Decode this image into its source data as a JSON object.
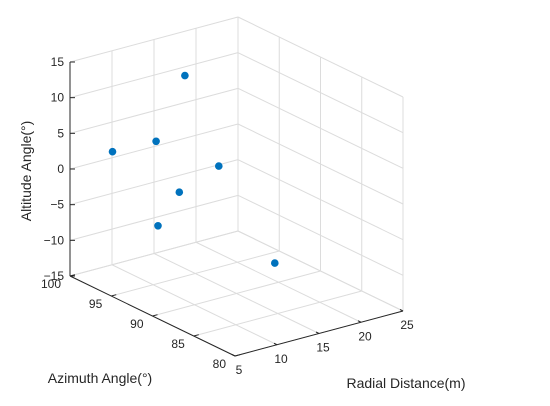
{
  "chart_data": {
    "type": "scatter",
    "projection": "3d",
    "xlabel": "Radial Distance(m)",
    "ylabel": "Azimuth Angle(°)",
    "zlabel": "Altitude Angle(°)",
    "xlim": [
      5,
      25
    ],
    "ylim": [
      80,
      100
    ],
    "zlim": [
      -15,
      15
    ],
    "xticks": [
      "5",
      "10",
      "15",
      "20",
      "25"
    ],
    "yticks": [
      "80",
      "85",
      "90",
      "95",
      "100"
    ],
    "zticks": [
      "−15",
      "−10",
      "−5",
      "0",
      "5",
      "10",
      "15"
    ],
    "grid": true,
    "marker_color": "#0072BD",
    "points": [
      {
        "x": 7.6,
        "y": 97.5,
        "z": 3
      },
      {
        "x": 12.6,
        "y": 97.3,
        "z": 3
      },
      {
        "x": 17.3,
        "y": 98.6,
        "z": 10
      },
      {
        "x": 8.4,
        "y": 92.8,
        "z": -5
      },
      {
        "x": 13.1,
        "y": 95.0,
        "z": -3
      },
      {
        "x": 18.0,
        "y": 95.2,
        "z": -1
      },
      {
        "x": 17.1,
        "y": 87.5,
        "z": -10
      }
    ]
  }
}
